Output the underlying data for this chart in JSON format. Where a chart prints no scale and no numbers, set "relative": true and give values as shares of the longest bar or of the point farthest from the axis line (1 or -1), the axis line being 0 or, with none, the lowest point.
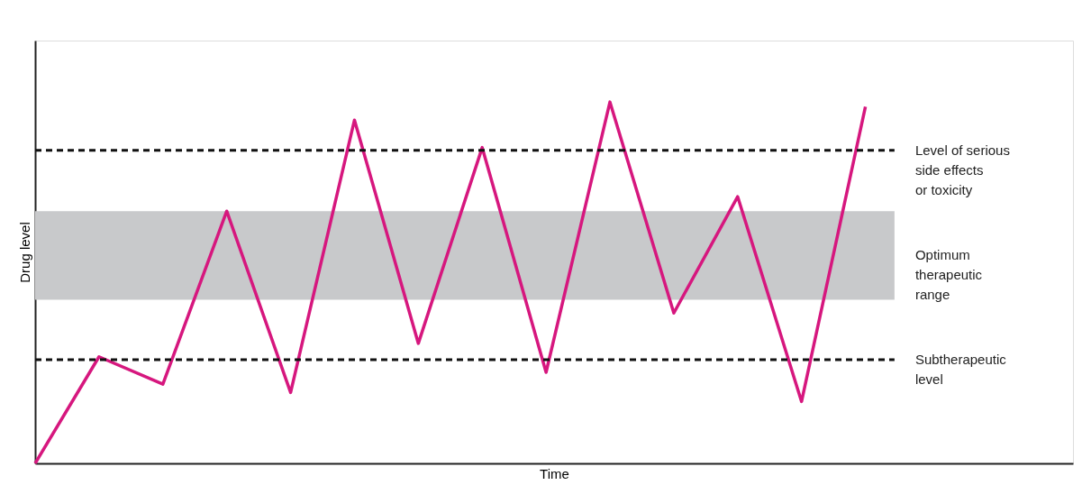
{
  "chart_data": {
    "type": "line",
    "xlabel": "Time",
    "ylabel": "Drug level",
    "relative": true,
    "tick_labels": false,
    "marker": "none",
    "line_style": "solid",
    "categories": [
      null,
      null,
      null,
      null,
      null,
      null,
      null,
      null,
      null,
      null,
      null,
      null,
      null,
      null
    ],
    "series": [
      {
        "color": "#d6177e",
        "values": [
          0,
          0.295,
          0.219,
          0.698,
          0.196,
          0.95,
          0.332,
          0.874,
          0.252,
          1.0,
          0.416,
          0.738,
          0.171,
          0.987
        ]
      }
    ],
    "ref_lines": [
      {
        "axis": "y",
        "value": 0.866,
        "label": "Level of serious\nside effects\nor toxicity",
        "color": "#111111",
        "line_style": "dashed"
      },
      {
        "axis": "y",
        "value": 0.287,
        "label": "Subtherapeutic\nlevel",
        "color": "#111111",
        "line_style": "dashed"
      }
    ],
    "bands": [
      {
        "axis": "y",
        "from": 0.453,
        "to": 0.698,
        "label": "Optimum\ntherapeutic\nrange",
        "color": "#c8c9cb"
      }
    ]
  }
}
